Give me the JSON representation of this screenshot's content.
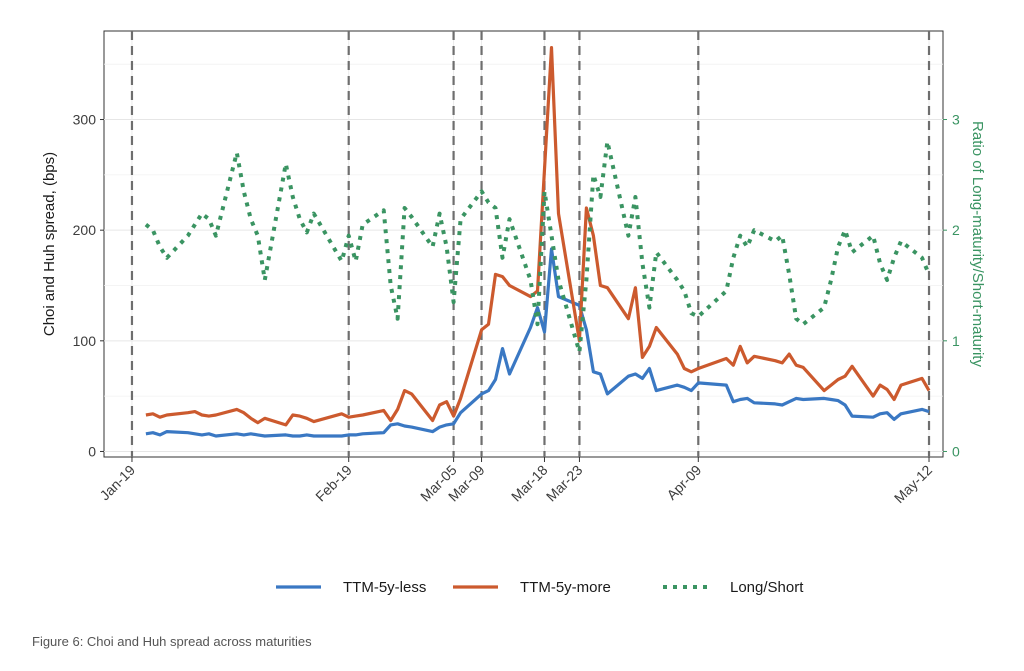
{
  "caption": "Figure 6: Choi and Huh spread across maturities",
  "chart_data": {
    "type": "line",
    "title": "",
    "ylabel": "Choi and Huh spread, (bps)",
    "y2label": "Ratio of Long-maturity/Short-maturity",
    "ylim": [
      -5,
      380
    ],
    "y2lim": [
      -0.05,
      3.8
    ],
    "yticks": [
      0,
      100,
      200,
      300
    ],
    "y2ticks": [
      0,
      1,
      2,
      3
    ],
    "xlim": [
      "2020-01-15",
      "2020-05-14"
    ],
    "xticks": [
      {
        "date": "2020-01-19",
        "label": "Jan-19"
      },
      {
        "date": "2020-02-19",
        "label": "Feb-19"
      },
      {
        "date": "2020-03-05",
        "label": "Mar-05"
      },
      {
        "date": "2020-03-09",
        "label": "Mar-09"
      },
      {
        "date": "2020-03-18",
        "label": "Mar-18"
      },
      {
        "date": "2020-03-23",
        "label": "Mar-23"
      },
      {
        "date": "2020-04-09",
        "label": "Apr-09"
      },
      {
        "date": "2020-05-12",
        "label": "May-12"
      }
    ],
    "vlines": [
      "2020-01-19",
      "2020-02-19",
      "2020-03-05",
      "2020-03-09",
      "2020-03-18",
      "2020-03-23",
      "2020-04-09",
      "2020-05-12"
    ],
    "grid": true,
    "legend_position": "bottom",
    "series": [
      {
        "name": "TTM-5y-less",
        "color": "#3a78c3",
        "axis": "left",
        "style": "solid",
        "points": [
          [
            "2020-01-21",
            16
          ],
          [
            "2020-01-22",
            17
          ],
          [
            "2020-01-23",
            15
          ],
          [
            "2020-01-24",
            18
          ],
          [
            "2020-01-27",
            17
          ],
          [
            "2020-01-28",
            16
          ],
          [
            "2020-01-29",
            15
          ],
          [
            "2020-01-30",
            16
          ],
          [
            "2020-01-31",
            14
          ],
          [
            "2020-02-03",
            16
          ],
          [
            "2020-02-04",
            15
          ],
          [
            "2020-02-05",
            16
          ],
          [
            "2020-02-06",
            15
          ],
          [
            "2020-02-07",
            14
          ],
          [
            "2020-02-10",
            15
          ],
          [
            "2020-02-11",
            14
          ],
          [
            "2020-02-12",
            14
          ],
          [
            "2020-02-13",
            15
          ],
          [
            "2020-02-14",
            14
          ],
          [
            "2020-02-18",
            14
          ],
          [
            "2020-02-19",
            15
          ],
          [
            "2020-02-20",
            15
          ],
          [
            "2020-02-21",
            16
          ],
          [
            "2020-02-24",
            17
          ],
          [
            "2020-02-25",
            24
          ],
          [
            "2020-02-26",
            25
          ],
          [
            "2020-02-27",
            23
          ],
          [
            "2020-02-28",
            22
          ],
          [
            "2020-03-02",
            18
          ],
          [
            "2020-03-03",
            22
          ],
          [
            "2020-03-04",
            24
          ],
          [
            "2020-03-05",
            25
          ],
          [
            "2020-03-06",
            35
          ],
          [
            "2020-03-09",
            52
          ],
          [
            "2020-03-10",
            55
          ],
          [
            "2020-03-11",
            65
          ],
          [
            "2020-03-12",
            93
          ],
          [
            "2020-03-13",
            70
          ],
          [
            "2020-03-16",
            112
          ],
          [
            "2020-03-17",
            130
          ],
          [
            "2020-03-18",
            108
          ],
          [
            "2020-03-19",
            183
          ],
          [
            "2020-03-20",
            140
          ],
          [
            "2020-03-23",
            132
          ],
          [
            "2020-03-24",
            110
          ],
          [
            "2020-03-25",
            72
          ],
          [
            "2020-03-26",
            70
          ],
          [
            "2020-03-27",
            52
          ],
          [
            "2020-03-30",
            68
          ],
          [
            "2020-03-31",
            70
          ],
          [
            "2020-04-01",
            66
          ],
          [
            "2020-04-02",
            75
          ],
          [
            "2020-04-03",
            55
          ],
          [
            "2020-04-06",
            60
          ],
          [
            "2020-04-07",
            58
          ],
          [
            "2020-04-08",
            55
          ],
          [
            "2020-04-09",
            62
          ],
          [
            "2020-04-13",
            60
          ],
          [
            "2020-04-14",
            45
          ],
          [
            "2020-04-15",
            47
          ],
          [
            "2020-04-16",
            48
          ],
          [
            "2020-04-17",
            44
          ],
          [
            "2020-04-20",
            43
          ],
          [
            "2020-04-21",
            42
          ],
          [
            "2020-04-22",
            45
          ],
          [
            "2020-04-23",
            48
          ],
          [
            "2020-04-24",
            47
          ],
          [
            "2020-04-27",
            48
          ],
          [
            "2020-04-28",
            47
          ],
          [
            "2020-04-29",
            46
          ],
          [
            "2020-04-30",
            42
          ],
          [
            "2020-05-01",
            32
          ],
          [
            "2020-05-04",
            31
          ],
          [
            "2020-05-05",
            34
          ],
          [
            "2020-05-06",
            35
          ],
          [
            "2020-05-07",
            29
          ],
          [
            "2020-05-08",
            34
          ],
          [
            "2020-05-11",
            38
          ],
          [
            "2020-05-12",
            36
          ]
        ]
      },
      {
        "name": "TTM-5y-more",
        "color": "#cc5a2e",
        "axis": "left",
        "style": "solid",
        "points": [
          [
            "2020-01-21",
            33
          ],
          [
            "2020-01-22",
            34
          ],
          [
            "2020-01-23",
            31
          ],
          [
            "2020-01-24",
            33
          ],
          [
            "2020-01-27",
            35
          ],
          [
            "2020-01-28",
            36
          ],
          [
            "2020-01-29",
            33
          ],
          [
            "2020-01-30",
            32
          ],
          [
            "2020-01-31",
            33
          ],
          [
            "2020-02-03",
            38
          ],
          [
            "2020-02-04",
            35
          ],
          [
            "2020-02-05",
            30
          ],
          [
            "2020-02-06",
            26
          ],
          [
            "2020-02-07",
            30
          ],
          [
            "2020-02-10",
            24
          ],
          [
            "2020-02-11",
            33
          ],
          [
            "2020-02-12",
            32
          ],
          [
            "2020-02-13",
            30
          ],
          [
            "2020-02-14",
            27
          ],
          [
            "2020-02-18",
            34
          ],
          [
            "2020-02-19",
            31
          ],
          [
            "2020-02-20",
            32
          ],
          [
            "2020-02-21",
            33
          ],
          [
            "2020-02-24",
            37
          ],
          [
            "2020-02-25",
            28
          ],
          [
            "2020-02-26",
            38
          ],
          [
            "2020-02-27",
            55
          ],
          [
            "2020-02-28",
            52
          ],
          [
            "2020-03-02",
            28
          ],
          [
            "2020-03-03",
            42
          ],
          [
            "2020-03-04",
            45
          ],
          [
            "2020-03-05",
            32
          ],
          [
            "2020-03-06",
            48
          ],
          [
            "2020-03-09",
            110
          ],
          [
            "2020-03-10",
            115
          ],
          [
            "2020-03-11",
            160
          ],
          [
            "2020-03-12",
            158
          ],
          [
            "2020-03-13",
            150
          ],
          [
            "2020-03-16",
            140
          ],
          [
            "2020-03-17",
            145
          ],
          [
            "2020-03-18",
            255
          ],
          [
            "2020-03-19",
            365
          ],
          [
            "2020-03-20",
            215
          ],
          [
            "2020-03-23",
            100
          ],
          [
            "2020-03-24",
            220
          ],
          [
            "2020-03-25",
            195
          ],
          [
            "2020-03-26",
            150
          ],
          [
            "2020-03-27",
            148
          ],
          [
            "2020-03-30",
            120
          ],
          [
            "2020-03-31",
            148
          ],
          [
            "2020-04-01",
            85
          ],
          [
            "2020-04-02",
            95
          ],
          [
            "2020-04-03",
            112
          ],
          [
            "2020-04-06",
            88
          ],
          [
            "2020-04-07",
            75
          ],
          [
            "2020-04-08",
            72
          ],
          [
            "2020-04-09",
            75
          ],
          [
            "2020-04-13",
            84
          ],
          [
            "2020-04-14",
            78
          ],
          [
            "2020-04-15",
            95
          ],
          [
            "2020-04-16",
            80
          ],
          [
            "2020-04-17",
            86
          ],
          [
            "2020-04-20",
            82
          ],
          [
            "2020-04-21",
            80
          ],
          [
            "2020-04-22",
            88
          ],
          [
            "2020-04-23",
            78
          ],
          [
            "2020-04-24",
            76
          ],
          [
            "2020-04-27",
            55
          ],
          [
            "2020-04-28",
            60
          ],
          [
            "2020-04-29",
            65
          ],
          [
            "2020-04-30",
            68
          ],
          [
            "2020-05-01",
            77
          ],
          [
            "2020-05-04",
            50
          ],
          [
            "2020-05-05",
            60
          ],
          [
            "2020-05-06",
            56
          ],
          [
            "2020-05-07",
            47
          ],
          [
            "2020-05-08",
            60
          ],
          [
            "2020-05-11",
            66
          ],
          [
            "2020-05-12",
            55
          ]
        ]
      },
      {
        "name": "Long/Short",
        "color": "#3a9462",
        "axis": "right",
        "style": "dotted",
        "points": [
          [
            "2020-01-21",
            2.05
          ],
          [
            "2020-01-22",
            2.0
          ],
          [
            "2020-01-23",
            1.85
          ],
          [
            "2020-01-24",
            1.75
          ],
          [
            "2020-01-27",
            1.95
          ],
          [
            "2020-01-28",
            2.05
          ],
          [
            "2020-01-29",
            2.15
          ],
          [
            "2020-01-30",
            2.1
          ],
          [
            "2020-01-31",
            1.95
          ],
          [
            "2020-02-03",
            2.7
          ],
          [
            "2020-02-04",
            2.35
          ],
          [
            "2020-02-05",
            2.1
          ],
          [
            "2020-02-06",
            1.95
          ],
          [
            "2020-02-07",
            1.55
          ],
          [
            "2020-02-10",
            2.6
          ],
          [
            "2020-02-11",
            2.3
          ],
          [
            "2020-02-12",
            2.1
          ],
          [
            "2020-02-13",
            1.98
          ],
          [
            "2020-02-14",
            2.15
          ],
          [
            "2020-02-18",
            1.72
          ],
          [
            "2020-02-19",
            1.95
          ],
          [
            "2020-02-20",
            1.72
          ],
          [
            "2020-02-21",
            2.05
          ],
          [
            "2020-02-24",
            2.18
          ],
          [
            "2020-02-25",
            1.5
          ],
          [
            "2020-02-26",
            1.2
          ],
          [
            "2020-02-27",
            2.2
          ],
          [
            "2020-02-28",
            2.12
          ],
          [
            "2020-03-02",
            1.85
          ],
          [
            "2020-03-03",
            2.15
          ],
          [
            "2020-03-04",
            1.85
          ],
          [
            "2020-03-05",
            1.35
          ],
          [
            "2020-03-06",
            2.1
          ],
          [
            "2020-03-09",
            2.35
          ],
          [
            "2020-03-10",
            2.25
          ],
          [
            "2020-03-11",
            2.2
          ],
          [
            "2020-03-12",
            1.75
          ],
          [
            "2020-03-13",
            2.1
          ],
          [
            "2020-03-16",
            1.55
          ],
          [
            "2020-03-17",
            1.15
          ],
          [
            "2020-03-18",
            2.35
          ],
          [
            "2020-03-19",
            1.95
          ],
          [
            "2020-03-20",
            1.55
          ],
          [
            "2020-03-23",
            0.9
          ],
          [
            "2020-03-24",
            1.55
          ],
          [
            "2020-03-25",
            2.5
          ],
          [
            "2020-03-26",
            2.3
          ],
          [
            "2020-03-27",
            2.8
          ],
          [
            "2020-03-30",
            1.95
          ],
          [
            "2020-03-31",
            2.3
          ],
          [
            "2020-04-01",
            1.7
          ],
          [
            "2020-04-02",
            1.3
          ],
          [
            "2020-04-03",
            1.8
          ],
          [
            "2020-04-06",
            1.55
          ],
          [
            "2020-04-07",
            1.45
          ],
          [
            "2020-04-08",
            1.25
          ],
          [
            "2020-04-09",
            1.22
          ],
          [
            "2020-04-13",
            1.45
          ],
          [
            "2020-04-14",
            1.75
          ],
          [
            "2020-04-15",
            1.95
          ],
          [
            "2020-04-16",
            1.85
          ],
          [
            "2020-04-17",
            2.0
          ],
          [
            "2020-04-20",
            1.9
          ],
          [
            "2020-04-21",
            1.95
          ],
          [
            "2020-04-22",
            1.6
          ],
          [
            "2020-04-23",
            1.2
          ],
          [
            "2020-04-24",
            1.15
          ],
          [
            "2020-04-27",
            1.3
          ],
          [
            "2020-04-28",
            1.55
          ],
          [
            "2020-04-29",
            1.85
          ],
          [
            "2020-04-30",
            2.0
          ],
          [
            "2020-05-01",
            1.8
          ],
          [
            "2020-05-04",
            1.95
          ],
          [
            "2020-05-05",
            1.7
          ],
          [
            "2020-05-06",
            1.55
          ],
          [
            "2020-05-07",
            1.75
          ],
          [
            "2020-05-08",
            1.9
          ],
          [
            "2020-05-11",
            1.75
          ],
          [
            "2020-05-12",
            1.6
          ]
        ]
      }
    ]
  }
}
